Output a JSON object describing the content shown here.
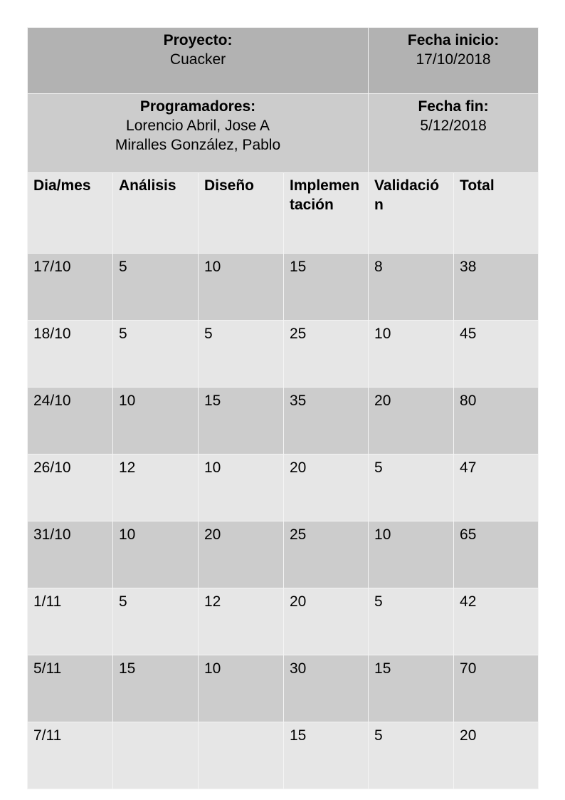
{
  "header": {
    "project_label": "Proyecto:",
    "project_value": "Cuacker",
    "start_label": "Fecha inicio:",
    "start_value": "17/10/2018",
    "programmers_label": "Programadores:",
    "programmers_value": "Lorencio Abril, Jose A\nMiralles González, Pablo",
    "end_label": "Fecha fin:",
    "end_value": "5/12/2018"
  },
  "columns": [
    "Dia/mes",
    "Análisis",
    "Diseño",
    "Implementación",
    "Validación",
    "Total"
  ],
  "rows": [
    [
      "17/10",
      "5",
      "10",
      "15",
      "8",
      "38"
    ],
    [
      "18/10",
      "5",
      "5",
      "25",
      "10",
      "45"
    ],
    [
      "24/10",
      "10",
      "15",
      "35",
      "20",
      "80"
    ],
    [
      "26/10",
      "12",
      "10",
      "20",
      "5",
      "47"
    ],
    [
      "31/10",
      "10",
      "20",
      "25",
      "10",
      "65"
    ],
    [
      "1/11",
      "5",
      "12",
      "20",
      "5",
      "42"
    ],
    [
      "5/11",
      "15",
      "10",
      "30",
      "15",
      "70"
    ],
    [
      "7/11",
      "",
      "",
      "15",
      "5",
      "20"
    ]
  ]
}
